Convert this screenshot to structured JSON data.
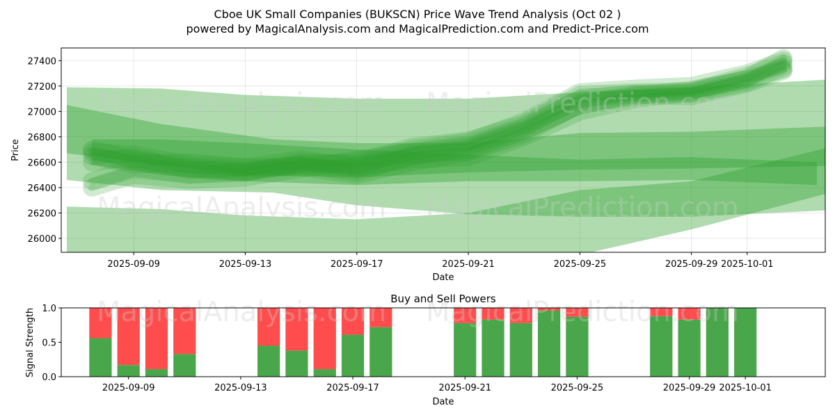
{
  "title_line1": "Cboe UK Small Companies (BUKSCN) Price Wave Trend Analysis (Oct 02 )",
  "title_line2": "powered by MagicalAnalysis.com and MagicalPrediction.com and Predict-Price.com",
  "watermarks": [
    "MagicalAnalysis.com",
    "MagicalPrediction.com"
  ],
  "colors": {
    "wave": "#2ca02c",
    "buy": "#4aa64a",
    "sell": "#ff4c4c"
  },
  "chart_data": [
    {
      "type": "area",
      "title": "Cboe UK Small Companies (BUKSCN) Price Wave Trend Analysis (Oct 02 )",
      "xlabel": "Date",
      "ylabel": "Price",
      "xlim": [
        "2025-09-06",
        "2025-10-04"
      ],
      "ylim": [
        25890,
        27500
      ],
      "xticks": [
        "2025-09-09",
        "2025-09-13",
        "2025-09-17",
        "2025-09-21",
        "2025-09-25",
        "2025-09-29",
        "2025-10-01"
      ],
      "yticks": [
        26000,
        26200,
        26400,
        26600,
        26800,
        27000,
        27200,
        27400
      ],
      "grid": true,
      "bands": [
        {
          "name": "upper-wide",
          "x": [
            "2025-09-06.6",
            "2025-09-10",
            "2025-09-13",
            "2025-09-17",
            "2025-09-21",
            "2025-09-25",
            "2025-09-29",
            "2025-10-03.8"
          ],
          "upper": [
            27190,
            27180,
            27130,
            27100,
            27100,
            27150,
            27190,
            27250
          ],
          "lower": [
            26670,
            26580,
            26500,
            26480,
            26520,
            26540,
            26550,
            26570
          ]
        },
        {
          "name": "lower-wide",
          "x": [
            "2025-09-06.6",
            "2025-09-10",
            "2025-09-13",
            "2025-09-17",
            "2025-09-21",
            "2025-09-25",
            "2025-09-29",
            "2025-10-03.8"
          ],
          "upper": [
            26250,
            26230,
            26180,
            26150,
            26200,
            26380,
            26450,
            26710
          ],
          "lower": [
            25850,
            25850,
            25850,
            25850,
            25850,
            25870,
            26070,
            26350
          ]
        },
        {
          "name": "mid-wide",
          "x": [
            "2025-09-06.6",
            "2025-09-10",
            "2025-09-14",
            "2025-09-17",
            "2025-09-21",
            "2025-09-25",
            "2025-09-29",
            "2025-10-03.8"
          ],
          "upper": [
            27050,
            26900,
            26780,
            26750,
            26750,
            26830,
            26840,
            26880
          ],
          "lower": [
            26460,
            26380,
            26360,
            26260,
            26190,
            26170,
            26170,
            26220
          ]
        },
        {
          "name": "mid-band",
          "x": [
            "2025-09-07.5",
            "2025-09-10",
            "2025-09-13",
            "2025-09-17",
            "2025-09-21",
            "2025-09-25",
            "2025-09-29",
            "2025-10-03.5"
          ],
          "upper": [
            26780,
            26780,
            26750,
            26700,
            26660,
            26620,
            26640,
            26600
          ],
          "lower": [
            26580,
            26500,
            26450,
            26420,
            26450,
            26450,
            26460,
            26420
          ]
        }
      ],
      "paths": [
        {
          "name": "wave-1",
          "x": [
            "2025-09-07.5",
            "2025-09-09",
            "2025-09-11",
            "2025-09-13",
            "2025-09-15",
            "2025-09-17",
            "2025-09-19",
            "2025-09-21",
            "2025-09-23",
            "2025-09-25",
            "2025-09-27",
            "2025-09-29",
            "2025-10-01",
            "2025-10-02.3"
          ],
          "y": [
            26450,
            26560,
            26500,
            26520,
            26580,
            26600,
            26720,
            26770,
            26900,
            27130,
            27150,
            27160,
            27280,
            27380
          ]
        },
        {
          "name": "wave-2",
          "x": [
            "2025-09-07.5",
            "2025-09-09",
            "2025-09-11",
            "2025-09-13",
            "2025-09-15",
            "2025-09-17",
            "2025-09-19",
            "2025-09-21",
            "2025-09-23",
            "2025-09-25",
            "2025-09-27",
            "2025-09-29",
            "2025-10-01",
            "2025-10-02.3"
          ],
          "y": [
            26700,
            26620,
            26560,
            26540,
            26580,
            26520,
            26650,
            26700,
            26850,
            27050,
            27120,
            27170,
            27250,
            27330
          ]
        },
        {
          "name": "wave-3",
          "x": [
            "2025-09-07.5",
            "2025-09-09",
            "2025-09-11",
            "2025-09-13",
            "2025-09-15",
            "2025-09-17",
            "2025-09-19",
            "2025-09-21",
            "2025-09-23",
            "2025-09-25",
            "2025-09-27",
            "2025-09-29",
            "2025-10-01",
            "2025-10-02.3"
          ],
          "y": [
            26600,
            26640,
            26540,
            26520,
            26600,
            26580,
            26700,
            26760,
            26920,
            27150,
            27180,
            27200,
            27300,
            27400
          ]
        },
        {
          "name": "wave-4",
          "x": [
            "2025-09-07.5",
            "2025-09-09",
            "2025-09-11",
            "2025-09-13",
            "2025-09-15",
            "2025-09-17",
            "2025-09-19",
            "2025-09-21",
            "2025-09-23",
            "2025-09-25",
            "2025-09-27",
            "2025-09-29",
            "2025-10-01",
            "2025-10-02.3"
          ],
          "y": [
            26400,
            26500,
            26460,
            26480,
            26550,
            26620,
            26680,
            26740,
            26880,
            27100,
            27140,
            27140,
            27230,
            27350
          ]
        },
        {
          "name": "wave-5",
          "x": [
            "2025-09-07.5",
            "2025-09-09",
            "2025-09-11",
            "2025-09-13",
            "2025-09-15",
            "2025-09-17",
            "2025-09-19",
            "2025-09-21",
            "2025-09-23",
            "2025-09-25",
            "2025-09-27",
            "2025-09-29",
            "2025-10-01",
            "2025-10-02.3"
          ],
          "y": [
            26650,
            26580,
            26600,
            26560,
            26620,
            26560,
            26620,
            26640,
            26800,
            27000,
            27100,
            27150,
            27260,
            27420
          ]
        },
        {
          "name": "wave-6",
          "x": [
            "2025-09-07.5",
            "2025-09-09",
            "2025-09-11",
            "2025-09-13",
            "2025-09-15",
            "2025-09-17",
            "2025-09-19",
            "2025-09-21",
            "2025-09-23",
            "2025-09-25",
            "2025-09-27",
            "2025-09-29",
            "2025-10-01",
            "2025-10-02.3"
          ],
          "y": [
            26680,
            26660,
            26580,
            26560,
            26560,
            26500,
            26600,
            26680,
            26820,
            27060,
            27130,
            27120,
            27220,
            27320
          ]
        }
      ]
    },
    {
      "type": "bar",
      "title": "Buy and Sell Powers",
      "xlabel": "Date",
      "ylabel": "Signal Strength",
      "ylim": [
        0,
        1.0
      ],
      "yticks": [
        0.0,
        0.5,
        1.0
      ],
      "xticks": [
        "2025-09-09",
        "2025-09-13",
        "2025-09-17",
        "2025-09-21",
        "2025-09-25",
        "2025-09-29",
        "2025-10-01"
      ],
      "series": [
        {
          "name": "Buy"
        },
        {
          "name": "Sell"
        }
      ],
      "bars": [
        {
          "date": "2025-09-08",
          "buy": 0.56
        },
        {
          "date": "2025-09-09",
          "buy": 0.17
        },
        {
          "date": "2025-09-10",
          "buy": 0.11
        },
        {
          "date": "2025-09-11",
          "buy": 0.33
        },
        {
          "date": "2025-09-14",
          "buy": 0.45
        },
        {
          "date": "2025-09-15",
          "buy": 0.38
        },
        {
          "date": "2025-09-16",
          "buy": 0.11
        },
        {
          "date": "2025-09-17",
          "buy": 0.61
        },
        {
          "date": "2025-09-18",
          "buy": 0.72
        },
        {
          "date": "2025-09-21",
          "buy": 0.78
        },
        {
          "date": "2025-09-22",
          "buy": 0.83
        },
        {
          "date": "2025-09-23",
          "buy": 0.78
        },
        {
          "date": "2025-09-24",
          "buy": 0.96
        },
        {
          "date": "2025-09-25",
          "buy": 0.87
        },
        {
          "date": "2025-09-28",
          "buy": 0.88
        },
        {
          "date": "2025-09-29",
          "buy": 0.83
        },
        {
          "date": "2025-09-30",
          "buy": 1.0
        },
        {
          "date": "2025-10-01",
          "buy": 1.0
        }
      ]
    }
  ]
}
